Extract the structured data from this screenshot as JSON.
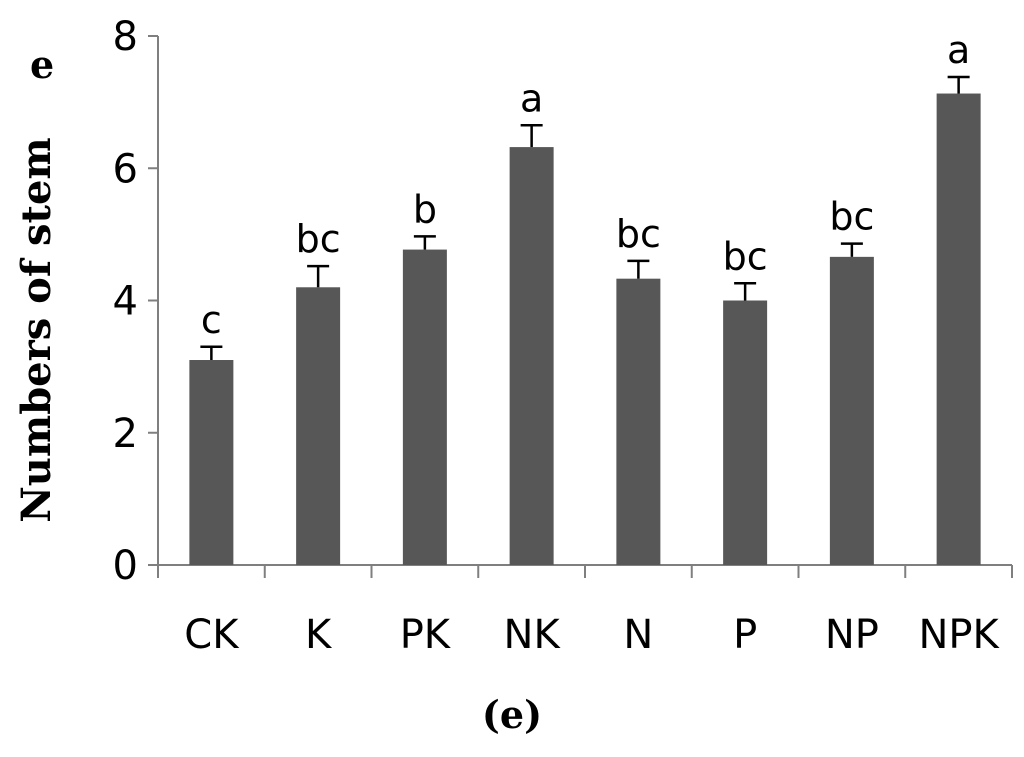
{
  "panel_label": "e",
  "caption": "(e)",
  "colors": {
    "bar": "#575757",
    "axis": "#7f7f7f",
    "error": "#000000"
  },
  "chart_data": {
    "type": "bar",
    "ylabel": "Numbers of stem",
    "categories": [
      "CK",
      "K",
      "PK",
      "NK",
      "N",
      "P",
      "NP",
      "NPK"
    ],
    "values": [
      3.1,
      4.2,
      4.77,
      6.32,
      4.33,
      4.0,
      4.66,
      7.13
    ],
    "errors": [
      0.2,
      0.32,
      0.2,
      0.33,
      0.27,
      0.26,
      0.2,
      0.25
    ],
    "significance": [
      "c",
      "bc",
      "b",
      "a",
      "bc",
      "bc",
      "bc",
      "a"
    ],
    "ylim": [
      0,
      8
    ],
    "yticks": [
      0,
      2,
      4,
      6,
      8
    ],
    "grid": false,
    "legend": "none"
  }
}
